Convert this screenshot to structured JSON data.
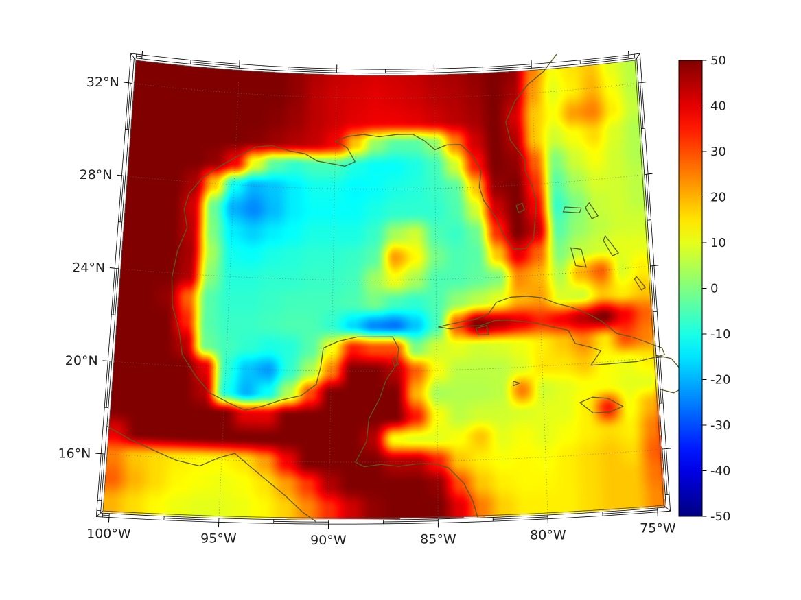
{
  "figure": {
    "background": "#ffffff"
  },
  "chart_data": {
    "type": "heatmap",
    "subtype": "geographic-map-pcolor",
    "title": "",
    "colormap": "jet",
    "vmin": -50,
    "vmax": 50,
    "colorbar": {
      "tick_values": [
        50,
        40,
        30,
        20,
        10,
        0,
        -10,
        -20,
        -30,
        -40,
        -50
      ],
      "tick_labels": [
        "50",
        "40",
        "30",
        "20",
        "10",
        "0",
        "-10",
        "-20",
        "-30",
        "-40",
        "-50"
      ]
    },
    "x_axis": {
      "tick_lons": [
        -100,
        -95,
        -90,
        -85,
        -80,
        -75
      ],
      "tick_labels": [
        "100°W",
        "95°W",
        "90°W",
        "85°W",
        "80°W",
        "75°W"
      ]
    },
    "y_axis": {
      "tick_lats": [
        16,
        20,
        24,
        28,
        32
      ],
      "tick_labels": [
        "16°N",
        "20°N",
        "24°N",
        "28°N",
        "32°N"
      ]
    },
    "graticule": {
      "lons": [
        -95,
        -90,
        -85,
        -80
      ],
      "lats": [
        16,
        20,
        24,
        28,
        32
      ]
    },
    "grid": {
      "lon0": -100,
      "dlon": 1,
      "lat0": 33,
      "dlat": 1,
      "values": [
        [
          50,
          50,
          50,
          50,
          50,
          50,
          50,
          50,
          48,
          45,
          43,
          42,
          41,
          42,
          43,
          45,
          46,
          48,
          50,
          48,
          25,
          12,
          15,
          18,
          10,
          6,
          5
        ],
        [
          50,
          50,
          50,
          50,
          50,
          50,
          50,
          50,
          48,
          44,
          42,
          41,
          40,
          41,
          42,
          44,
          45,
          47,
          50,
          46,
          22,
          10,
          14,
          20,
          12,
          6,
          5
        ],
        [
          50,
          50,
          50,
          50,
          50,
          50,
          50,
          49,
          47,
          44,
          42,
          40,
          39,
          39,
          40,
          42,
          44,
          46,
          50,
          42,
          18,
          12,
          22,
          25,
          14,
          7,
          5
        ],
        [
          50,
          50,
          50,
          50,
          50,
          50,
          49,
          47,
          45,
          43,
          38,
          18,
          2,
          -4,
          -4,
          2,
          25,
          42,
          50,
          45,
          18,
          8,
          12,
          16,
          9,
          5,
          4
        ],
        [
          50,
          50,
          50,
          50,
          48,
          38,
          10,
          -4,
          -8,
          -6,
          -6,
          -10,
          -12,
          -12,
          -10,
          -6,
          8,
          35,
          50,
          48,
          28,
          0,
          8,
          12,
          8,
          5,
          4
        ],
        [
          50,
          50,
          50,
          46,
          18,
          -12,
          -20,
          -18,
          -14,
          -11,
          -11,
          -13,
          -12,
          -10,
          -9,
          -7,
          -4,
          18,
          48,
          50,
          33,
          -4,
          4,
          9,
          8,
          6,
          5
        ],
        [
          50,
          50,
          50,
          42,
          -2,
          -20,
          -24,
          -19,
          -14,
          -12,
          -12,
          -12,
          -10,
          -8,
          -8,
          -8,
          -5,
          8,
          42,
          50,
          38,
          -7,
          0,
          7,
          8,
          6,
          5
        ],
        [
          50,
          50,
          50,
          44,
          0,
          -14,
          -17,
          -14,
          -12,
          -10,
          -10,
          -10,
          -7,
          4,
          8,
          -5,
          -7,
          -2,
          33,
          50,
          43,
          -4,
          2,
          6,
          8,
          8,
          6
        ],
        [
          50,
          50,
          50,
          46,
          4,
          -11,
          -12,
          -10,
          -9,
          -8,
          -8,
          -7,
          -4,
          22,
          13,
          -1,
          -5,
          -4,
          18,
          40,
          28,
          0,
          6,
          8,
          10,
          10,
          8
        ],
        [
          50,
          50,
          50,
          45,
          1,
          -9,
          -9,
          -8,
          -8,
          -7,
          -7,
          -6,
          3,
          11,
          4,
          -5,
          -5,
          -3,
          0,
          24,
          20,
          5,
          20,
          28,
          9,
          14,
          9
        ],
        [
          50,
          50,
          48,
          28,
          -4,
          -8,
          -8,
          -7,
          -6,
          -6,
          -6,
          -5,
          -1,
          -6,
          -8,
          -5,
          2,
          6,
          10,
          20,
          22,
          9,
          8,
          18,
          14,
          18,
          13
        ],
        [
          50,
          50,
          50,
          34,
          -4,
          -7,
          -7,
          -6,
          -5,
          -5,
          -8,
          -16,
          -24,
          -26,
          -18,
          -6,
          30,
          50,
          45,
          40,
          34,
          38,
          44,
          50,
          38,
          28,
          18
        ],
        [
          50,
          50,
          50,
          44,
          -2,
          -6,
          -8,
          -10,
          -9,
          -4,
          12,
          35,
          30,
          30,
          0,
          8,
          10,
          8,
          9,
          11,
          14,
          18,
          24,
          15,
          30,
          25,
          15
        ],
        [
          50,
          50,
          50,
          50,
          40,
          -8,
          -18,
          -22,
          -8,
          4,
          25,
          50,
          50,
          45,
          28,
          12,
          6,
          6,
          6,
          9,
          15,
          15,
          18,
          12,
          11,
          14,
          20
        ],
        [
          50,
          50,
          50,
          50,
          45,
          -10,
          -20,
          -12,
          5,
          30,
          50,
          50,
          50,
          50,
          20,
          4,
          5,
          5,
          6,
          25,
          8,
          10,
          12,
          12,
          10,
          10,
          30
        ],
        [
          50,
          50,
          50,
          50,
          50,
          50,
          40,
          40,
          50,
          50,
          50,
          50,
          50,
          50,
          35,
          12,
          6,
          8,
          8,
          9,
          10,
          10,
          14,
          35,
          12,
          20,
          40
        ],
        [
          40,
          50,
          50,
          50,
          50,
          50,
          50,
          50,
          50,
          50,
          50,
          50,
          45,
          12,
          10,
          10,
          12,
          18,
          10,
          12,
          10,
          12,
          14,
          16,
          14,
          25,
          45
        ],
        [
          25,
          18,
          16,
          14,
          13,
          13,
          15,
          22,
          38,
          50,
          50,
          50,
          50,
          45,
          45,
          35,
          18,
          14,
          12,
          13,
          12,
          14,
          16,
          18,
          16,
          28,
          40
        ],
        [
          28,
          20,
          16,
          13,
          12,
          11,
          12,
          15,
          22,
          32,
          45,
          50,
          50,
          50,
          50,
          48,
          30,
          18,
          14,
          13,
          13,
          14,
          16,
          18,
          18,
          26,
          35
        ],
        [
          20,
          16,
          13,
          11,
          10,
          10,
          11,
          13,
          17,
          24,
          33,
          42,
          48,
          50,
          50,
          50,
          40,
          25,
          17,
          14,
          14,
          14,
          16,
          18,
          18,
          24,
          30
        ]
      ]
    },
    "coastlines": {
      "us_gulf_atlantic": [
        [
          -97.2,
          26.0
        ],
        [
          -97.4,
          26.8
        ],
        [
          -97.2,
          27.5
        ],
        [
          -96.6,
          28.2
        ],
        [
          -95.7,
          28.8
        ],
        [
          -94.8,
          29.3
        ],
        [
          -94.0,
          29.7
        ],
        [
          -93.2,
          29.8
        ],
        [
          -92.3,
          29.6
        ],
        [
          -91.5,
          29.5
        ],
        [
          -90.9,
          29.2
        ],
        [
          -90.2,
          29.1
        ],
        [
          -89.5,
          29.0
        ],
        [
          -89.0,
          29.2
        ],
        [
          -89.4,
          29.8
        ],
        [
          -90.0,
          30.1
        ],
        [
          -89.4,
          30.3
        ],
        [
          -88.6,
          30.4
        ],
        [
          -87.8,
          30.3
        ],
        [
          -86.9,
          30.4
        ],
        [
          -86.1,
          30.4
        ],
        [
          -85.5,
          30.1
        ],
        [
          -85.0,
          29.7
        ],
        [
          -84.4,
          29.9
        ],
        [
          -83.7,
          29.9
        ],
        [
          -83.1,
          29.4
        ],
        [
          -82.7,
          28.7
        ],
        [
          -82.8,
          28.0
        ],
        [
          -82.6,
          27.4
        ],
        [
          -82.0,
          26.6
        ],
        [
          -81.7,
          25.9
        ],
        [
          -81.2,
          25.2
        ],
        [
          -80.6,
          25.2
        ],
        [
          -80.2,
          25.6
        ],
        [
          -80.1,
          26.4
        ],
        [
          -80.0,
          27.2
        ],
        [
          -80.2,
          28.0
        ],
        [
          -80.5,
          28.6
        ],
        [
          -80.5,
          29.1
        ],
        [
          -81.2,
          30.0
        ],
        [
          -81.4,
          30.8
        ],
        [
          -80.9,
          31.7
        ],
        [
          -80.2,
          32.4
        ],
        [
          -79.4,
          32.9
        ],
        [
          -78.7,
          33.6
        ]
      ],
      "mexico_centam": [
        [
          -97.2,
          26.0
        ],
        [
          -97.6,
          25.0
        ],
        [
          -97.8,
          23.8
        ],
        [
          -97.7,
          22.6
        ],
        [
          -97.3,
          21.5
        ],
        [
          -97.1,
          20.5
        ],
        [
          -96.4,
          19.6
        ],
        [
          -95.7,
          18.9
        ],
        [
          -94.8,
          18.5
        ],
        [
          -94.0,
          18.2
        ],
        [
          -93.2,
          18.4
        ],
        [
          -92.3,
          18.7
        ],
        [
          -91.4,
          18.9
        ],
        [
          -90.7,
          19.4
        ],
        [
          -90.5,
          20.2
        ],
        [
          -90.4,
          21.0
        ],
        [
          -89.7,
          21.3
        ],
        [
          -88.8,
          21.5
        ],
        [
          -87.9,
          21.5
        ],
        [
          -87.1,
          21.5
        ],
        [
          -86.8,
          21.0
        ],
        [
          -86.9,
          20.3
        ],
        [
          -87.4,
          19.6
        ],
        [
          -87.7,
          18.8
        ],
        [
          -88.2,
          17.9
        ],
        [
          -88.3,
          16.9
        ],
        [
          -88.8,
          16.0
        ],
        [
          -88.4,
          15.8
        ],
        [
          -87.6,
          15.9
        ],
        [
          -86.8,
          15.8
        ],
        [
          -86.0,
          15.9
        ],
        [
          -85.2,
          15.9
        ],
        [
          -84.5,
          15.7
        ],
        [
          -83.8,
          15.0
        ],
        [
          -83.4,
          14.2
        ],
        [
          -83.2,
          13.5
        ]
      ],
      "mexico_pacific": [
        [
          -100.4,
          17.2
        ],
        [
          -99.3,
          16.7
        ],
        [
          -98.2,
          16.3
        ],
        [
          -97.1,
          15.9
        ],
        [
          -96.0,
          15.7
        ],
        [
          -95.1,
          16.1
        ],
        [
          -94.4,
          16.3
        ],
        [
          -93.6,
          15.7
        ],
        [
          -92.8,
          15.1
        ],
        [
          -92.0,
          14.5
        ],
        [
          -91.2,
          13.8
        ],
        [
          -90.6,
          13.4
        ]
      ],
      "cuba": [
        [
          -84.9,
          21.9
        ],
        [
          -84.4,
          22.0
        ],
        [
          -83.8,
          22.1
        ],
        [
          -83.1,
          22.2
        ],
        [
          -82.5,
          22.4
        ],
        [
          -82.1,
          22.9
        ],
        [
          -81.4,
          23.1
        ],
        [
          -80.6,
          23.1
        ],
        [
          -79.9,
          23.0
        ],
        [
          -79.2,
          22.7
        ],
        [
          -78.5,
          22.5
        ],
        [
          -77.8,
          22.2
        ],
        [
          -77.1,
          21.8
        ],
        [
          -76.4,
          21.2
        ],
        [
          -75.7,
          21.0
        ],
        [
          -75.0,
          20.7
        ],
        [
          -74.3,
          20.4
        ],
        [
          -74.2,
          20.1
        ],
        [
          -74.8,
          20.0
        ],
        [
          -75.5,
          19.9
        ],
        [
          -76.3,
          19.9
        ],
        [
          -77.1,
          19.9
        ],
        [
          -77.7,
          19.9
        ],
        [
          -77.2,
          20.5
        ],
        [
          -77.7,
          20.7
        ],
        [
          -78.4,
          20.9
        ],
        [
          -78.7,
          21.5
        ],
        [
          -79.5,
          21.7
        ],
        [
          -80.2,
          21.9
        ],
        [
          -80.9,
          22.0
        ],
        [
          -81.6,
          22.1
        ],
        [
          -82.2,
          22.1
        ],
        [
          -82.9,
          21.9
        ],
        [
          -83.6,
          21.9
        ],
        [
          -84.3,
          21.8
        ],
        [
          -84.9,
          21.9
        ]
      ],
      "isla_juventud": [
        [
          -83.1,
          21.8
        ],
        [
          -82.6,
          21.9
        ],
        [
          -82.5,
          21.5
        ],
        [
          -83.0,
          21.5
        ],
        [
          -83.1,
          21.8
        ]
      ],
      "jamaica": [
        [
          -78.3,
          18.3
        ],
        [
          -77.7,
          18.5
        ],
        [
          -77.0,
          18.4
        ],
        [
          -76.3,
          18.0
        ],
        [
          -76.9,
          17.8
        ],
        [
          -77.7,
          17.8
        ],
        [
          -78.3,
          18.3
        ]
      ],
      "hispaniola_nw": [
        [
          -74.6,
          20.1
        ],
        [
          -73.9,
          19.9
        ],
        [
          -73.5,
          19.4
        ]
      ],
      "hispaniola_sw": [
        [
          -74.5,
          18.6
        ],
        [
          -73.9,
          18.4
        ],
        [
          -73.4,
          18.6
        ]
      ],
      "grand_bahama": [
        [
          -78.7,
          26.7
        ],
        [
          -77.9,
          26.6
        ],
        [
          -77.8,
          26.8
        ],
        [
          -78.6,
          26.9
        ],
        [
          -78.7,
          26.7
        ]
      ],
      "abaco": [
        [
          -77.4,
          27.0
        ],
        [
          -77.0,
          26.4
        ],
        [
          -77.3,
          26.3
        ],
        [
          -77.6,
          26.8
        ],
        [
          -77.4,
          27.0
        ]
      ],
      "andros": [
        [
          -78.4,
          25.1
        ],
        [
          -77.9,
          25.0
        ],
        [
          -77.7,
          24.2
        ],
        [
          -78.2,
          24.3
        ],
        [
          -78.4,
          25.1
        ]
      ],
      "eleuthera": [
        [
          -76.7,
          25.5
        ],
        [
          -76.1,
          24.7
        ],
        [
          -76.4,
          24.6
        ],
        [
          -76.8,
          25.3
        ],
        [
          -76.7,
          25.5
        ]
      ],
      "long_island": [
        [
          -75.3,
          23.6
        ],
        [
          -74.9,
          23.1
        ],
        [
          -75.1,
          23.0
        ],
        [
          -75.4,
          23.5
        ],
        [
          -75.3,
          23.6
        ]
      ],
      "lake_okeechobee": [
        [
          -81.0,
          27.1
        ],
        [
          -80.7,
          27.2
        ],
        [
          -80.6,
          26.9
        ],
        [
          -80.9,
          26.8
        ],
        [
          -81.0,
          27.1
        ]
      ],
      "cozumel": [
        [
          -87.0,
          20.6
        ],
        [
          -86.8,
          20.3
        ],
        [
          -87.0,
          20.2
        ],
        [
          -87.1,
          20.5
        ],
        [
          -87.0,
          20.6
        ]
      ],
      "grand_cayman": [
        [
          -81.4,
          19.4
        ],
        [
          -81.1,
          19.3
        ],
        [
          -81.4,
          19.2
        ],
        [
          -81.4,
          19.4
        ]
      ]
    },
    "style": {
      "coastline_color": "#5b5a1f",
      "graticule_color": "#666666",
      "label_color": "#1f1f1f",
      "frame_color": "#000000",
      "background": "#ffffff"
    }
  }
}
